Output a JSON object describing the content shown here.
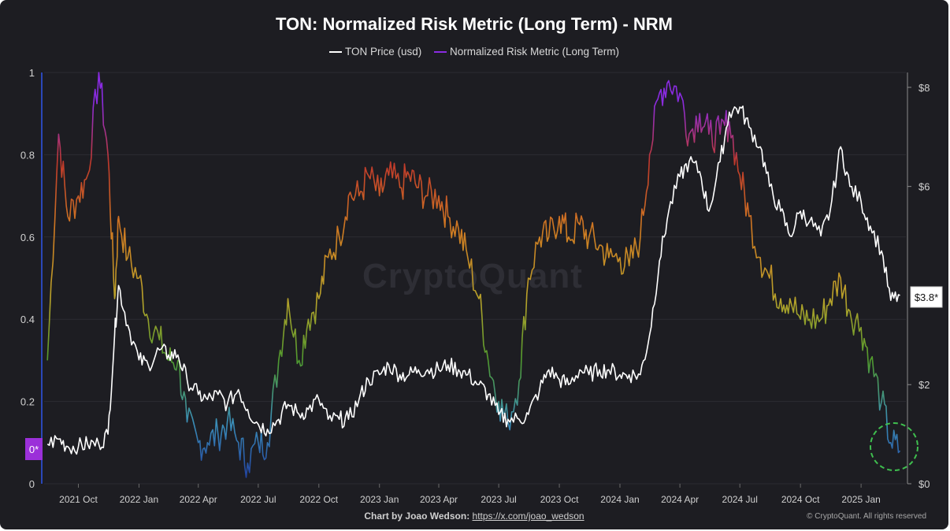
{
  "title": "TON: Normalized Risk Metric (Long Term) - NRM",
  "watermark": "CryptoQuant",
  "footer": {
    "credit_prefix": "Chart by Joao Wedson:",
    "credit_link": "https://x.com/joao_wedson",
    "copyright": "© CryptoQuant. All rights reserved"
  },
  "colors": {
    "background": "#1d1d22",
    "price_line": "#ffffff",
    "risk_legend": "#8a2be2",
    "risk_gradient": [
      "#1f3a9e",
      "#3b8fb8",
      "#4f9a2e",
      "#b9a32a",
      "#d07a22",
      "#c0392b",
      "#8a2be2"
    ],
    "badge_left": "#9b30d9",
    "highlight_circle": "#3fbf4f"
  },
  "chart_data": {
    "type": "line",
    "title": "TON: Normalized Risk Metric (Long Term) - NRM",
    "legend_position": "top",
    "grid": true,
    "x_ticks": [
      "2021 Oct",
      "2022 Jan",
      "2022 Apr",
      "2022 Jul",
      "2022 Oct",
      "2023 Jan",
      "2023 Apr",
      "2023 Jul",
      "2023 Oct",
      "2024 Jan",
      "2024 Apr",
      "2024 Jul",
      "2024 Oct",
      "2025 Jan"
    ],
    "left_axis": {
      "ticks": [
        "0",
        "0.2",
        "0.4",
        "0.6",
        "0.8",
        "1"
      ],
      "range": [
        0,
        1
      ]
    },
    "right_axis": {
      "ticks": [
        "$0",
        "$2",
        "$6",
        "$8"
      ],
      "range": [
        0,
        8.3
      ]
    },
    "last_value_badges": {
      "left": "0*",
      "right": "$3.8*"
    },
    "series": [
      {
        "name": "TON Price (usd)",
        "axis": "right",
        "x": [
          "2021-08-15",
          "2021-09-01",
          "2021-09-15",
          "2021-10-01",
          "2021-10-15",
          "2021-11-01",
          "2021-11-15",
          "2021-11-25",
          "2021-12-01",
          "2021-12-15",
          "2022-01-01",
          "2022-01-15",
          "2022-02-01",
          "2022-02-15",
          "2022-03-01",
          "2022-03-15",
          "2022-04-01",
          "2022-04-15",
          "2022-05-01",
          "2022-05-15",
          "2022-06-01",
          "2022-06-15",
          "2022-07-01",
          "2022-07-15",
          "2022-08-01",
          "2022-08-15",
          "2022-09-01",
          "2022-09-15",
          "2022-10-01",
          "2022-10-15",
          "2022-11-01",
          "2022-11-15",
          "2022-12-01",
          "2022-12-15",
          "2023-01-01",
          "2023-01-15",
          "2023-02-01",
          "2023-02-15",
          "2023-03-01",
          "2023-03-15",
          "2023-04-01",
          "2023-04-15",
          "2023-05-01",
          "2023-05-15",
          "2023-06-01",
          "2023-06-15",
          "2023-07-01",
          "2023-07-15",
          "2023-08-01",
          "2023-08-15",
          "2023-09-01",
          "2023-09-15",
          "2023-10-01",
          "2023-10-15",
          "2023-11-01",
          "2023-11-15",
          "2023-12-01",
          "2023-12-15",
          "2024-01-01",
          "2024-01-15",
          "2024-02-01",
          "2024-02-15",
          "2024-03-01",
          "2024-03-15",
          "2024-04-01",
          "2024-04-15",
          "2024-05-01",
          "2024-05-15",
          "2024-06-01",
          "2024-06-15",
          "2024-07-01",
          "2024-07-15",
          "2024-08-01",
          "2024-08-15",
          "2024-09-01",
          "2024-09-15",
          "2024-10-01",
          "2024-10-15",
          "2024-11-01",
          "2024-11-15",
          "2024-12-01",
          "2024-12-15",
          "2025-01-01",
          "2025-01-15",
          "2025-02-01",
          "2025-02-15",
          "2025-03-01"
        ],
        "values": [
          0.8,
          0.9,
          0.75,
          0.75,
          0.8,
          0.8,
          1.0,
          3.0,
          4.0,
          3.2,
          2.5,
          2.4,
          2.7,
          2.6,
          2.6,
          2.1,
          1.8,
          1.7,
          1.8,
          1.6,
          1.9,
          1.5,
          1.2,
          1.1,
          1.3,
          1.6,
          1.4,
          1.5,
          1.7,
          1.3,
          1.3,
          1.3,
          1.7,
          2.1,
          2.2,
          2.4,
          2.2,
          2.2,
          2.3,
          2.3,
          2.3,
          2.4,
          2.3,
          2.2,
          2.0,
          1.8,
          1.4,
          1.3,
          1.3,
          1.4,
          1.9,
          2.3,
          2.1,
          2.0,
          2.3,
          2.2,
          2.3,
          2.3,
          2.2,
          2.2,
          2.2,
          3.0,
          4.5,
          5.5,
          6.2,
          6.5,
          6.3,
          5.5,
          6.5,
          7.5,
          7.6,
          7.2,
          6.8,
          6.0,
          5.5,
          5.0,
          5.5,
          5.3,
          5.0,
          5.5,
          6.8,
          6.0,
          5.7,
          5.2,
          4.7,
          3.7,
          3.8
        ]
      },
      {
        "name": "Normalized Risk Metric (Long Term)",
        "axis": "left",
        "x": [
          "2021-08-15",
          "2021-09-01",
          "2021-09-15",
          "2021-10-01",
          "2021-10-15",
          "2021-11-01",
          "2021-11-15",
          "2021-11-25",
          "2021-12-01",
          "2021-12-15",
          "2022-01-01",
          "2022-01-15",
          "2022-02-01",
          "2022-02-15",
          "2022-03-01",
          "2022-03-15",
          "2022-04-01",
          "2022-04-15",
          "2022-05-01",
          "2022-05-15",
          "2022-06-01",
          "2022-06-15",
          "2022-07-01",
          "2022-07-15",
          "2022-08-01",
          "2022-08-15",
          "2022-09-01",
          "2022-09-15",
          "2022-10-01",
          "2022-10-15",
          "2022-11-01",
          "2022-11-15",
          "2022-12-01",
          "2022-12-15",
          "2023-01-01",
          "2023-01-15",
          "2023-02-01",
          "2023-02-15",
          "2023-03-01",
          "2023-03-15",
          "2023-04-01",
          "2023-04-15",
          "2023-05-01",
          "2023-05-15",
          "2023-06-01",
          "2023-06-15",
          "2023-07-01",
          "2023-07-15",
          "2023-08-01",
          "2023-08-15",
          "2023-09-01",
          "2023-09-15",
          "2023-10-01",
          "2023-10-15",
          "2023-11-01",
          "2023-11-15",
          "2023-12-01",
          "2023-12-15",
          "2024-01-01",
          "2024-01-15",
          "2024-02-01",
          "2024-02-15",
          "2024-03-01",
          "2024-03-15",
          "2024-04-01",
          "2024-04-15",
          "2024-05-01",
          "2024-05-15",
          "2024-06-01",
          "2024-06-15",
          "2024-07-01",
          "2024-07-15",
          "2024-08-01",
          "2024-08-15",
          "2024-09-01",
          "2024-09-15",
          "2024-10-01",
          "2024-10-15",
          "2024-11-01",
          "2024-11-15",
          "2024-12-01",
          "2024-12-15",
          "2025-01-01",
          "2025-01-15",
          "2025-02-01",
          "2025-02-15",
          "2025-03-01"
        ],
        "values": [
          0.3,
          0.85,
          0.65,
          0.7,
          0.75,
          1.0,
          0.8,
          0.45,
          0.65,
          0.55,
          0.5,
          0.4,
          0.35,
          0.3,
          0.3,
          0.15,
          0.1,
          0.1,
          0.12,
          0.15,
          0.1,
          0.05,
          0.1,
          0.1,
          0.3,
          0.45,
          0.3,
          0.4,
          0.45,
          0.55,
          0.6,
          0.7,
          0.7,
          0.75,
          0.7,
          0.75,
          0.72,
          0.75,
          0.72,
          0.7,
          0.7,
          0.65,
          0.62,
          0.55,
          0.45,
          0.3,
          0.2,
          0.15,
          0.25,
          0.5,
          0.6,
          0.6,
          0.65,
          0.6,
          0.63,
          0.6,
          0.58,
          0.55,
          0.55,
          0.53,
          0.6,
          0.8,
          0.95,
          0.98,
          0.95,
          0.85,
          0.9,
          0.85,
          0.85,
          0.88,
          0.75,
          0.65,
          0.55,
          0.5,
          0.45,
          0.45,
          0.4,
          0.4,
          0.4,
          0.45,
          0.5,
          0.42,
          0.38,
          0.3,
          0.2,
          0.1,
          0.08
        ]
      }
    ]
  }
}
